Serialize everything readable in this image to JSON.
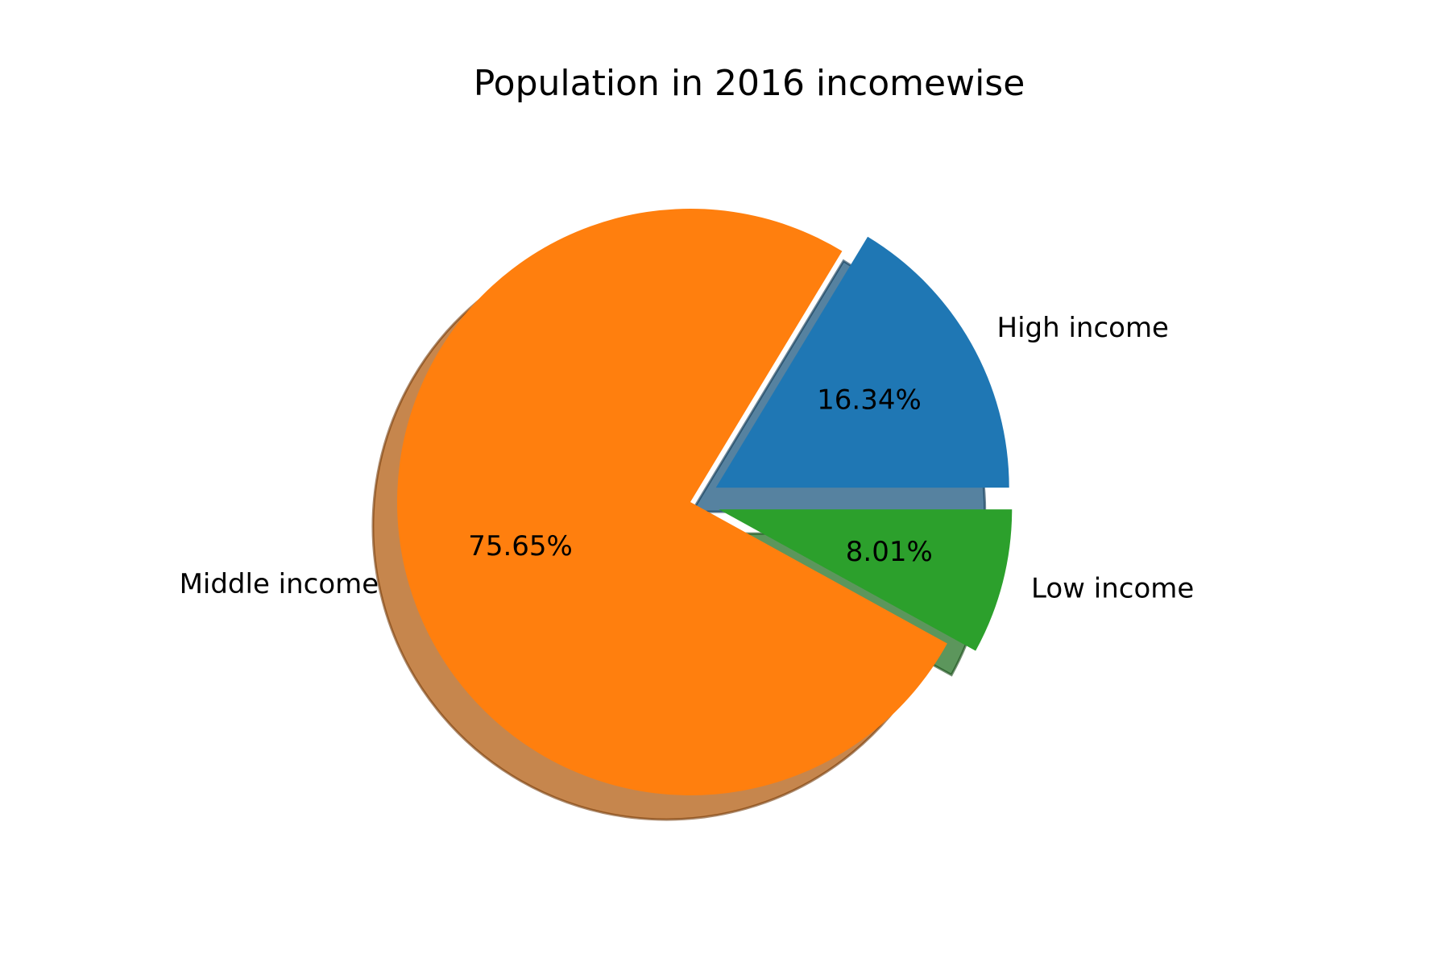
{
  "chart_data": {
    "type": "pie",
    "title": "Population in 2016 incomewise",
    "slices": [
      {
        "label": "High income",
        "value": 16.34,
        "pct_text": "16.34%",
        "color": "#1f77b4",
        "exploded": true
      },
      {
        "label": "Middle income",
        "value": 75.65,
        "pct_text": "75.65%",
        "color": "#ff7f0e",
        "exploded": false
      },
      {
        "label": "Low income",
        "value": 8.01,
        "pct_text": "8.01%",
        "color": "#2ca02c",
        "exploded": true
      }
    ],
    "shadow": true,
    "start_angle_deg": 0,
    "direction": "counterclockwise"
  }
}
